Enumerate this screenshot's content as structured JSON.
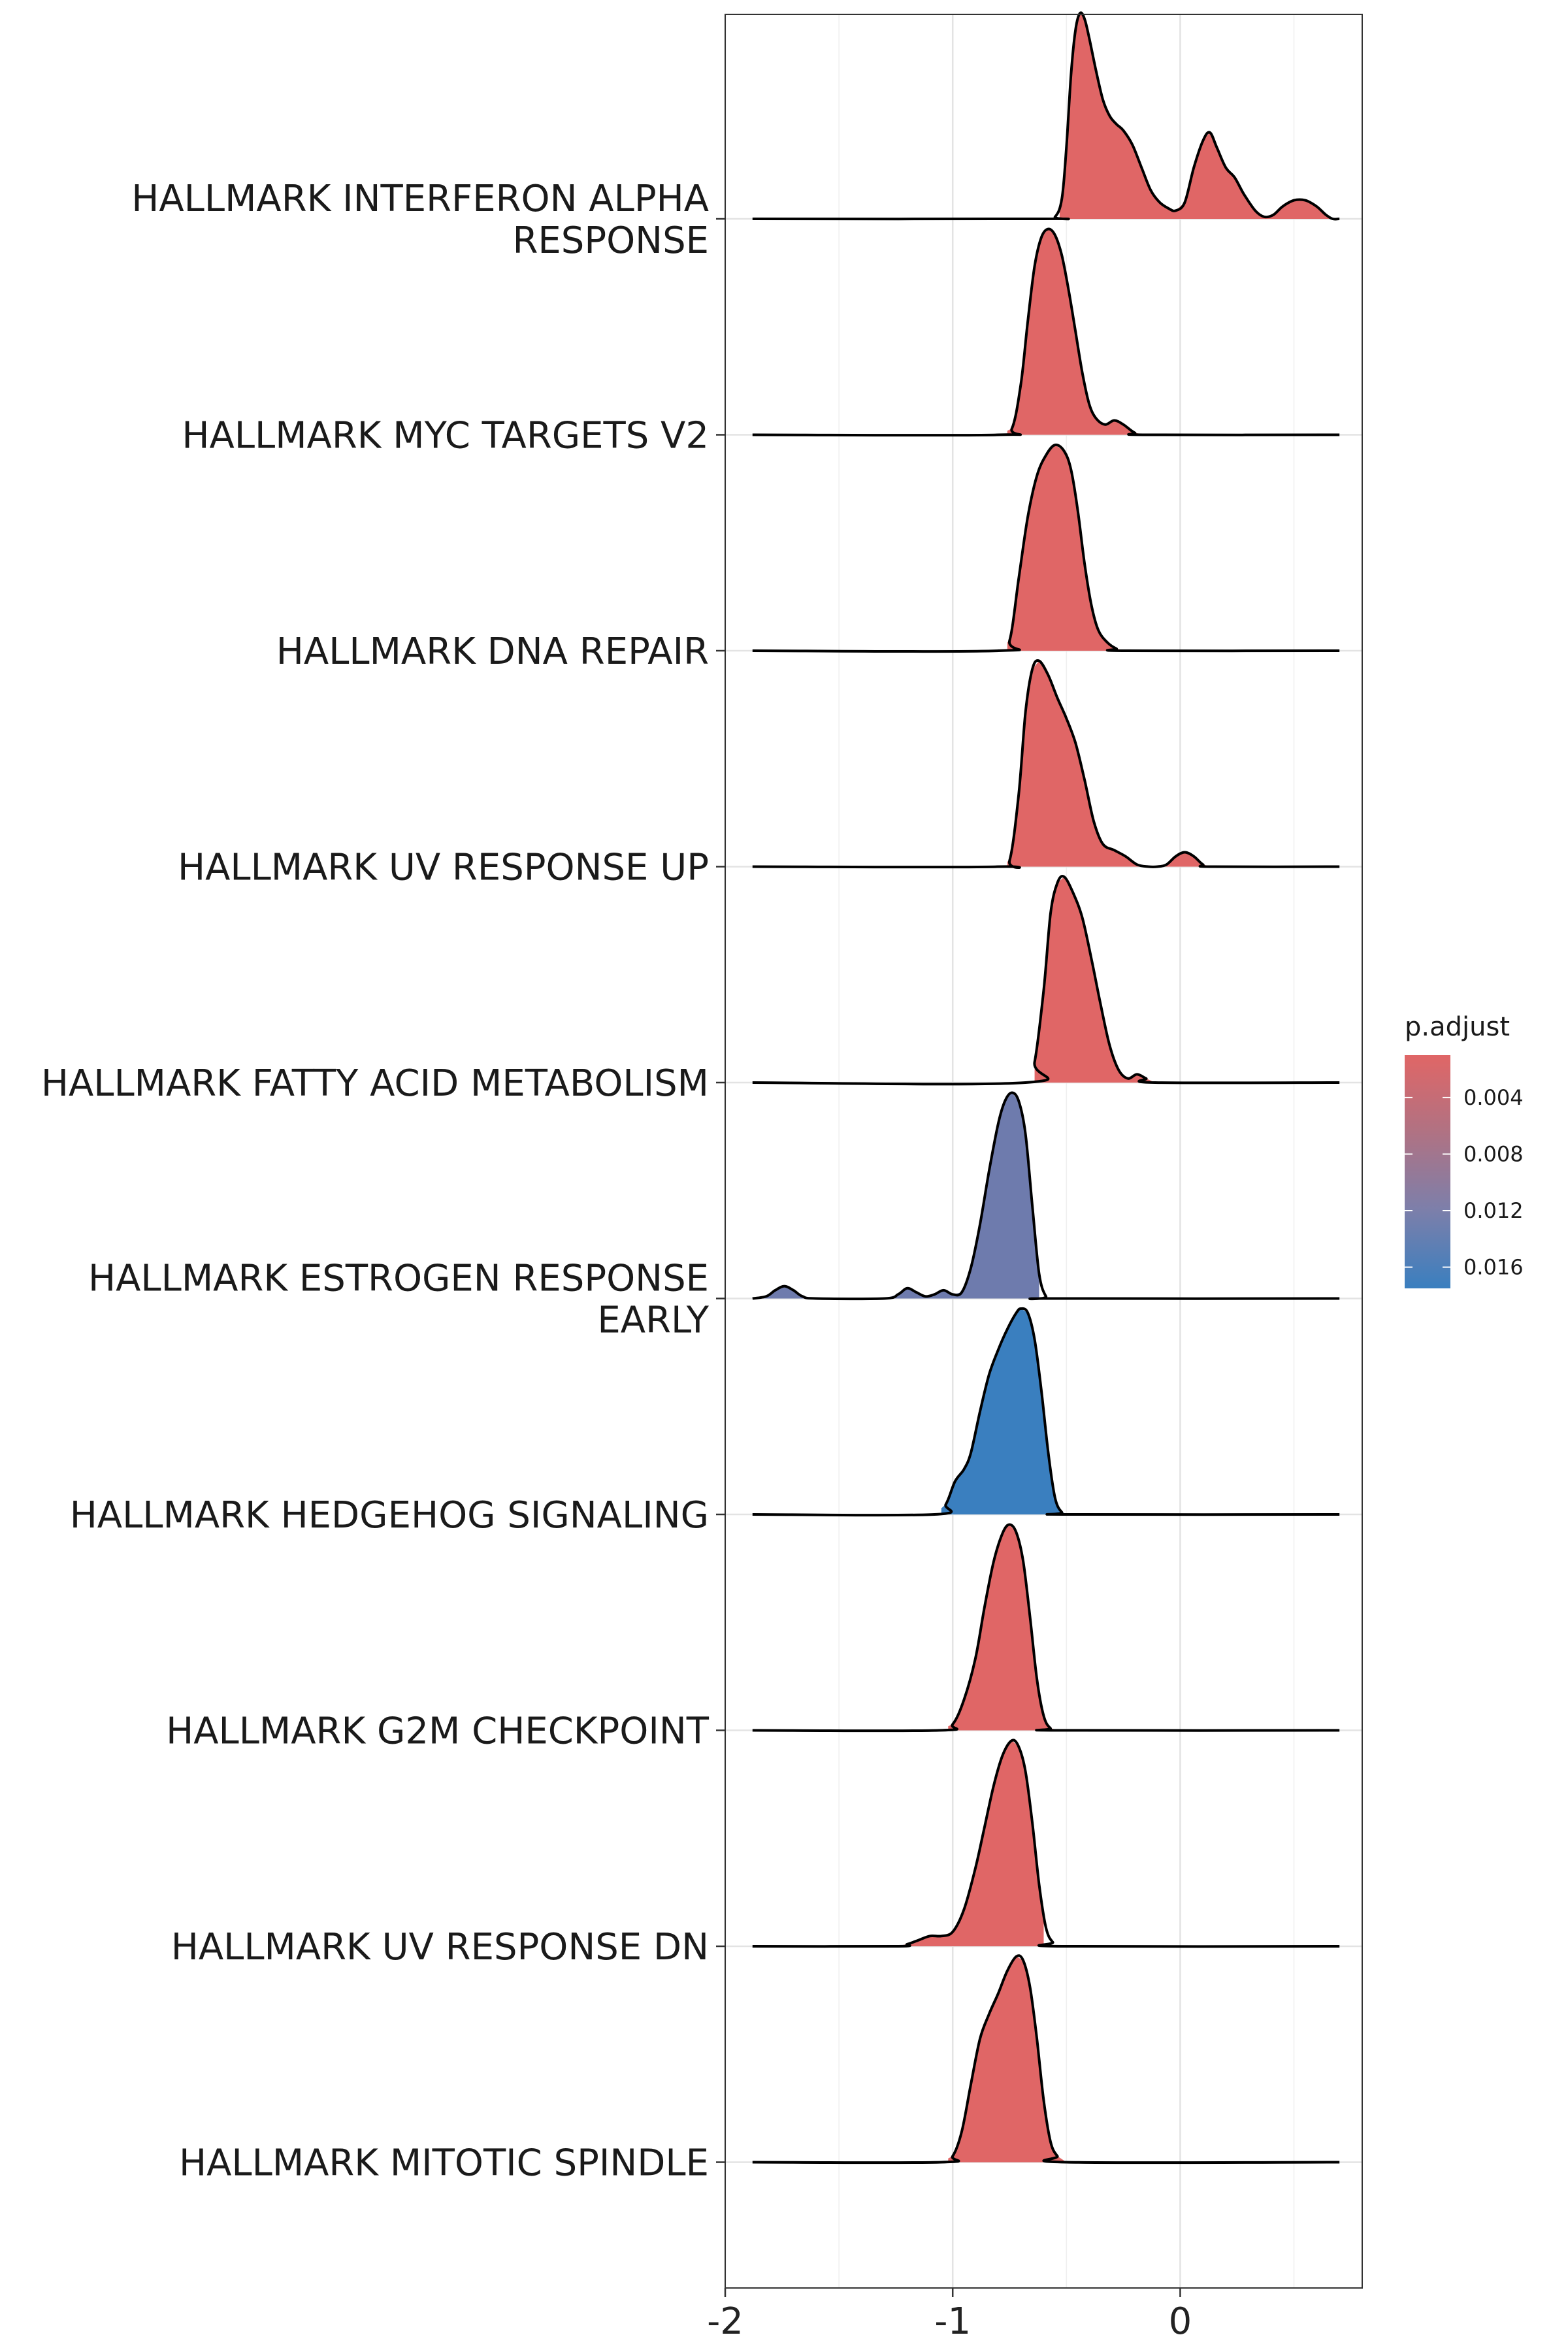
{
  "chart_data": {
    "type": "ridgeline",
    "title": "",
    "xlabel": "",
    "ylabel": "",
    "xlim": [
      -2.0,
      0.8
    ],
    "x_ticks": [
      {
        "value": -2,
        "label": "-2"
      },
      {
        "value": -1,
        "label": "-1"
      },
      {
        "value": 0,
        "label": "0"
      }
    ],
    "grid": true,
    "legend": {
      "title": "p.adjust",
      "position": "right",
      "gradient_colors": [
        "#e06666",
        "#b07283",
        "#7d7faa",
        "#3a7fbf"
      ],
      "ticks": [
        {
          "value": 0.004,
          "label": "0.004"
        },
        {
          "value": 0.008,
          "label": "0.008"
        },
        {
          "value": 0.012,
          "label": "0.012"
        },
        {
          "value": 0.016,
          "label": "0.016"
        }
      ]
    },
    "series": [
      {
        "label": "HALLMARK INTERFERON ALPHA RESPONSE",
        "label_lines": [
          "HALLMARK INTERFERON ALPHA",
          "RESPONSE"
        ],
        "color": "#e06666",
        "fill_range": [
          -0.53,
          0.66
        ],
        "density": [
          [
            -1.88,
            0
          ],
          [
            -0.6,
            0
          ],
          [
            -0.55,
            0.01
          ],
          [
            -0.52,
            0.1
          ],
          [
            -0.5,
            0.35
          ],
          [
            -0.48,
            0.7
          ],
          [
            -0.46,
            0.92
          ],
          [
            -0.44,
            1.0
          ],
          [
            -0.42,
            0.97
          ],
          [
            -0.4,
            0.88
          ],
          [
            -0.37,
            0.72
          ],
          [
            -0.34,
            0.58
          ],
          [
            -0.31,
            0.5
          ],
          [
            -0.28,
            0.46
          ],
          [
            -0.25,
            0.43
          ],
          [
            -0.21,
            0.36
          ],
          [
            -0.17,
            0.25
          ],
          [
            -0.13,
            0.14
          ],
          [
            -0.09,
            0.08
          ],
          [
            -0.05,
            0.05
          ],
          [
            -0.02,
            0.04
          ],
          [
            0.02,
            0.08
          ],
          [
            0.06,
            0.25
          ],
          [
            0.1,
            0.38
          ],
          [
            0.13,
            0.42
          ],
          [
            0.16,
            0.35
          ],
          [
            0.2,
            0.25
          ],
          [
            0.24,
            0.2
          ],
          [
            0.28,
            0.12
          ],
          [
            0.33,
            0.04
          ],
          [
            0.37,
            0.01
          ],
          [
            0.41,
            0.02
          ],
          [
            0.45,
            0.06
          ],
          [
            0.5,
            0.09
          ],
          [
            0.55,
            0.09
          ],
          [
            0.6,
            0.06
          ],
          [
            0.64,
            0.02
          ],
          [
            0.67,
            0.0
          ],
          [
            0.7,
            0
          ]
        ]
      },
      {
        "label": "HALLMARK MYC TARGETS V2",
        "label_lines": [
          "HALLMARK MYC TARGETS V2"
        ],
        "color": "#e06666",
        "fill_range": [
          -0.76,
          -0.13
        ],
        "density": [
          [
            -1.88,
            0
          ],
          [
            -0.8,
            0
          ],
          [
            -0.74,
            0.03
          ],
          [
            -0.7,
            0.25
          ],
          [
            -0.67,
            0.55
          ],
          [
            -0.64,
            0.82
          ],
          [
            -0.61,
            0.96
          ],
          [
            -0.58,
            1.0
          ],
          [
            -0.55,
            0.97
          ],
          [
            -0.52,
            0.87
          ],
          [
            -0.49,
            0.7
          ],
          [
            -0.46,
            0.5
          ],
          [
            -0.43,
            0.3
          ],
          [
            -0.4,
            0.15
          ],
          [
            -0.37,
            0.08
          ],
          [
            -0.33,
            0.05
          ],
          [
            -0.29,
            0.07
          ],
          [
            -0.25,
            0.05
          ],
          [
            -0.2,
            0.01
          ],
          [
            -0.15,
            0
          ],
          [
            0.7,
            0
          ]
        ]
      },
      {
        "label": "HALLMARK DNA REPAIR",
        "label_lines": [
          "HALLMARK DNA REPAIR"
        ],
        "color": "#e06666",
        "fill_range": [
          -0.76,
          -0.2
        ],
        "density": [
          [
            -1.88,
            0
          ],
          [
            -0.8,
            0
          ],
          [
            -0.75,
            0.05
          ],
          [
            -0.71,
            0.35
          ],
          [
            -0.67,
            0.65
          ],
          [
            -0.63,
            0.85
          ],
          [
            -0.59,
            0.95
          ],
          [
            -0.55,
            1.0
          ],
          [
            -0.51,
            0.97
          ],
          [
            -0.48,
            0.88
          ],
          [
            -0.45,
            0.68
          ],
          [
            -0.42,
            0.42
          ],
          [
            -0.39,
            0.22
          ],
          [
            -0.36,
            0.1
          ],
          [
            -0.32,
            0.04
          ],
          [
            -0.28,
            0.01
          ],
          [
            -0.24,
            0
          ],
          [
            0.7,
            0
          ]
        ]
      },
      {
        "label": "HALLMARK UV RESPONSE UP",
        "label_lines": [
          "HALLMARK UV RESPONSE UP"
        ],
        "color": "#e06666",
        "fill_range": [
          -0.76,
          0.18
        ],
        "density": [
          [
            -1.88,
            0
          ],
          [
            -0.8,
            0
          ],
          [
            -0.75,
            0.03
          ],
          [
            -0.71,
            0.35
          ],
          [
            -0.68,
            0.75
          ],
          [
            -0.65,
            0.96
          ],
          [
            -0.62,
            1.0
          ],
          [
            -0.58,
            0.93
          ],
          [
            -0.54,
            0.82
          ],
          [
            -0.5,
            0.72
          ],
          [
            -0.46,
            0.6
          ],
          [
            -0.42,
            0.42
          ],
          [
            -0.38,
            0.22
          ],
          [
            -0.34,
            0.11
          ],
          [
            -0.29,
            0.08
          ],
          [
            -0.24,
            0.05
          ],
          [
            -0.19,
            0.01
          ],
          [
            -0.14,
            0.0
          ],
          [
            -0.1,
            0.0
          ],
          [
            -0.06,
            0.01
          ],
          [
            -0.02,
            0.05
          ],
          [
            0.02,
            0.07
          ],
          [
            0.06,
            0.05
          ],
          [
            0.1,
            0.01
          ],
          [
            0.14,
            0
          ],
          [
            0.7,
            0
          ]
        ]
      },
      {
        "label": "HALLMARK FATTY ACID METABOLISM",
        "label_lines": [
          "HALLMARK FATTY ACID METABOLISM"
        ],
        "color": "#e06666",
        "fill_range": [
          -0.64,
          -0.08
        ],
        "density": [
          [
            -1.88,
            0
          ],
          [
            -0.68,
            0
          ],
          [
            -0.64,
            0.1
          ],
          [
            -0.6,
            0.45
          ],
          [
            -0.57,
            0.82
          ],
          [
            -0.54,
            0.97
          ],
          [
            -0.51,
            1.0
          ],
          [
            -0.47,
            0.92
          ],
          [
            -0.43,
            0.8
          ],
          [
            -0.39,
            0.6
          ],
          [
            -0.35,
            0.38
          ],
          [
            -0.31,
            0.18
          ],
          [
            -0.27,
            0.06
          ],
          [
            -0.23,
            0.02
          ],
          [
            -0.19,
            0.04
          ],
          [
            -0.15,
            0.02
          ],
          [
            -0.11,
            0.0
          ],
          [
            0.7,
            0
          ]
        ]
      },
      {
        "label": "HALLMARK ESTROGEN RESPONSE EARLY",
        "label_lines": [
          "HALLMARK ESTROGEN RESPONSE",
          "EARLY"
        ],
        "color": "#6e7bad",
        "fill_range": [
          -1.88,
          -0.62
        ],
        "density": [
          [
            -1.88,
            0
          ],
          [
            -1.82,
            0.01
          ],
          [
            -1.78,
            0.04
          ],
          [
            -1.74,
            0.06
          ],
          [
            -1.7,
            0.04
          ],
          [
            -1.66,
            0.01
          ],
          [
            -1.6,
            0
          ],
          [
            -1.3,
            0
          ],
          [
            -1.24,
            0.02
          ],
          [
            -1.2,
            0.05
          ],
          [
            -1.16,
            0.03
          ],
          [
            -1.12,
            0.01
          ],
          [
            -1.08,
            0.02
          ],
          [
            -1.04,
            0.04
          ],
          [
            -1.0,
            0.02
          ],
          [
            -0.96,
            0.03
          ],
          [
            -0.92,
            0.15
          ],
          [
            -0.88,
            0.36
          ],
          [
            -0.84,
            0.62
          ],
          [
            -0.8,
            0.85
          ],
          [
            -0.77,
            0.96
          ],
          [
            -0.74,
            1.0
          ],
          [
            -0.71,
            0.96
          ],
          [
            -0.68,
            0.8
          ],
          [
            -0.65,
            0.45
          ],
          [
            -0.62,
            0.12
          ],
          [
            -0.59,
            0.01
          ],
          [
            -0.56,
            0
          ],
          [
            0.7,
            0
          ]
        ]
      },
      {
        "label": "HALLMARK HEDGEHOG SIGNALING",
        "label_lines": [
          "HALLMARK HEDGEHOG SIGNALING"
        ],
        "color": "#3a7fbf",
        "fill_range": [
          -1.05,
          -0.5
        ],
        "density": [
          [
            -1.88,
            0
          ],
          [
            -1.08,
            0
          ],
          [
            -1.03,
            0.05
          ],
          [
            -0.99,
            0.16
          ],
          [
            -0.95,
            0.22
          ],
          [
            -0.92,
            0.3
          ],
          [
            -0.88,
            0.5
          ],
          [
            -0.84,
            0.68
          ],
          [
            -0.8,
            0.8
          ],
          [
            -0.76,
            0.9
          ],
          [
            -0.72,
            0.98
          ],
          [
            -0.7,
            1.0
          ],
          [
            -0.67,
            0.98
          ],
          [
            -0.64,
            0.85
          ],
          [
            -0.61,
            0.6
          ],
          [
            -0.58,
            0.3
          ],
          [
            -0.55,
            0.08
          ],
          [
            -0.52,
            0.01
          ],
          [
            -0.49,
            0
          ],
          [
            0.7,
            0
          ]
        ]
      },
      {
        "label": "HALLMARK G2M CHECKPOINT",
        "label_lines": [
          "HALLMARK G2M CHECKPOINT"
        ],
        "color": "#e06666",
        "fill_range": [
          -1.02,
          -0.54
        ],
        "density": [
          [
            -1.88,
            0
          ],
          [
            -1.06,
            0
          ],
          [
            -1.0,
            0.03
          ],
          [
            -0.95,
            0.15
          ],
          [
            -0.9,
            0.35
          ],
          [
            -0.86,
            0.6
          ],
          [
            -0.82,
            0.82
          ],
          [
            -0.78,
            0.96
          ],
          [
            -0.75,
            1.0
          ],
          [
            -0.72,
            0.96
          ],
          [
            -0.69,
            0.82
          ],
          [
            -0.66,
            0.55
          ],
          [
            -0.63,
            0.25
          ],
          [
            -0.6,
            0.07
          ],
          [
            -0.57,
            0.01
          ],
          [
            -0.53,
            0
          ],
          [
            0.7,
            0
          ]
        ]
      },
      {
        "label": "HALLMARK UV RESPONSE DN",
        "label_lines": [
          "HALLMARK UV RESPONSE DN"
        ],
        "color": "#e06666",
        "fill_range": [
          -1.22,
          -0.6
        ],
        "density": [
          [
            -1.88,
            0
          ],
          [
            -1.25,
            0
          ],
          [
            -1.2,
            0.01
          ],
          [
            -1.15,
            0.03
          ],
          [
            -1.1,
            0.05
          ],
          [
            -1.05,
            0.05
          ],
          [
            -1.0,
            0.07
          ],
          [
            -0.95,
            0.18
          ],
          [
            -0.9,
            0.38
          ],
          [
            -0.86,
            0.58
          ],
          [
            -0.82,
            0.78
          ],
          [
            -0.78,
            0.93
          ],
          [
            -0.74,
            1.0
          ],
          [
            -0.71,
            0.97
          ],
          [
            -0.68,
            0.85
          ],
          [
            -0.65,
            0.6
          ],
          [
            -0.62,
            0.3
          ],
          [
            -0.59,
            0.09
          ],
          [
            -0.56,
            0.02
          ],
          [
            -0.52,
            0
          ],
          [
            0.7,
            0
          ]
        ]
      },
      {
        "label": "HALLMARK MITOTIC SPINDLE",
        "label_lines": [
          "HALLMARK MITOTIC SPINDLE"
        ],
        "color": "#e06666",
        "fill_range": [
          -1.02,
          -0.5
        ],
        "density": [
          [
            -1.88,
            0
          ],
          [
            -1.05,
            0
          ],
          [
            -1.0,
            0.03
          ],
          [
            -0.96,
            0.15
          ],
          [
            -0.92,
            0.38
          ],
          [
            -0.88,
            0.6
          ],
          [
            -0.84,
            0.72
          ],
          [
            -0.8,
            0.82
          ],
          [
            -0.76,
            0.93
          ],
          [
            -0.72,
            1.0
          ],
          [
            -0.69,
            0.98
          ],
          [
            -0.66,
            0.85
          ],
          [
            -0.63,
            0.6
          ],
          [
            -0.6,
            0.3
          ],
          [
            -0.57,
            0.1
          ],
          [
            -0.54,
            0.03
          ],
          [
            -0.5,
            0.0
          ],
          [
            0.7,
            0
          ]
        ]
      }
    ]
  }
}
